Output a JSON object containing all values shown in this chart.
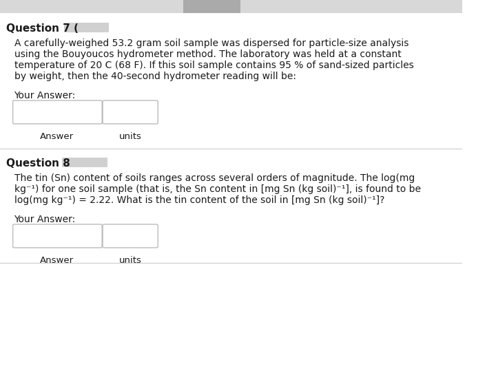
{
  "bg_color": "#ffffff",
  "q7_header": "Question 7 (",
  "q7_body_line1": "A carefully-weighed 53.2 gram soil sample was dispersed for particle-size analysis",
  "q7_body_line2": "using the Bouyoucos hydrometer method. The laboratory was held at a constant",
  "q7_body_line3": "temperature of 20 C (68 F). If this soil sample contains 95 % of sand-sized particles",
  "q7_body_line4": "by weight, then the 40-second hydrometer reading will be:",
  "q7_your_answer": "Your Answer:",
  "q7_answer_label": "Answer",
  "q7_units_label": "units",
  "q8_header": "Question 8",
  "q8_body_line1": "The tin (Sn) content of soils ranges across several orders of magnitude. The log(mg",
  "q8_body_line2": "kg⁻¹) for one soil sample (that is, the Sn content in [mg Sn (kg soil)⁻¹], is found to be",
  "q8_body_line3": "log(mg kg⁻¹) = 2.22. What is the tin content of the soil in [mg Sn (kg soil)⁻¹]?",
  "q8_your_answer": "Your Answer:",
  "q8_answer_label": "Answer",
  "q8_units_label": "units",
  "header_fontsize": 11,
  "body_fontsize": 10,
  "label_fontsize": 9.5,
  "box_color": "#ffffff",
  "box_edge_color": "#bbbbbb",
  "text_color": "#1a1a1a",
  "divider_color": "#cccccc",
  "blur_color": "#c8c8c8",
  "topbar_color": "#d8d8d8"
}
